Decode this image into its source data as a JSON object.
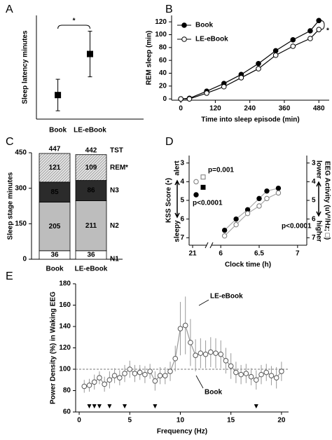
{
  "chart_data": [
    {
      "type": "errorbar",
      "panel": "A",
      "ylabel": "Sleep latency minutes",
      "categories": [
        "Book",
        "LE-eBook"
      ],
      "values": [
        15.8,
        25.7
      ],
      "errors": [
        3.8,
        5.5
      ],
      "color": "#000000",
      "ylim": [
        10,
        35
      ],
      "annotation": "*"
    },
    {
      "type": "line",
      "panel": "B",
      "xlabel": "Time into sleep episode (min)",
      "ylabel": "REM sleep (min)",
      "x": [
        0,
        30,
        90,
        150,
        210,
        270,
        330,
        390,
        450,
        480
      ],
      "series": [
        {
          "name": "Book",
          "color": "#000000",
          "values": [
            0,
            1,
            12,
            24,
            38,
            55,
            75,
            92,
            106,
            122
          ]
        },
        {
          "name": "LE-eBook",
          "color": "#ffffff",
          "values": [
            0,
            0,
            9,
            19,
            33,
            47,
            68,
            82,
            94,
            108
          ]
        }
      ],
      "xlim": [
        -32,
        516
      ],
      "ylim": [
        -2,
        130
      ],
      "xticks": [
        0,
        120,
        240,
        360,
        480
      ],
      "yticks": [
        0,
        20,
        40,
        60,
        80,
        100,
        120
      ],
      "legend": "upper left",
      "annotation": "*"
    },
    {
      "type": "stacked_bar",
      "panel": "C",
      "ylabel": "Sleep stage minutes",
      "categories": [
        "Book",
        "LE-eBook"
      ],
      "series": [
        {
          "name": "N1",
          "color": "#ffffff",
          "values": [
            36,
            36
          ]
        },
        {
          "name": "N2",
          "color": "#bdbdbd",
          "values": [
            205,
            211
          ]
        },
        {
          "name": "N3",
          "color": "#2b2b2b",
          "values": [
            85,
            86
          ]
        },
        {
          "name": "REM",
          "color": "#d9d9d9",
          "pattern": "hatch",
          "values": [
            121,
            109
          ]
        }
      ],
      "totals": {
        "name": "TST",
        "values": [
          447,
          442
        ]
      },
      "annotation": "*",
      "ylim": [
        0,
        450
      ],
      "yticks": [
        0,
        150,
        300,
        450
      ]
    },
    {
      "type": "scatter",
      "panel": "D",
      "xlabel": "Clock time (h)",
      "ylabel": "KSS Score (•)",
      "ylabel_top": "alert",
      "ylabel_bottom": "sleepy",
      "y2label": "EEG Activity (uV²/Hz; □)",
      "y2label_top": "lower",
      "y2label_bottom": "higher",
      "series": [
        {
          "color": "#000000",
          "marker": "circle",
          "x": [
            21.1,
            6.05,
            6.2,
            6.35,
            6.5,
            6.6,
            6.75
          ],
          "values": [
            4.7,
            6.6,
            6.0,
            5.5,
            4.9,
            4.5,
            4.35
          ]
        },
        {
          "color": "#ffffff",
          "edgecolor": "#777777",
          "marker": "circle",
          "x": [
            21.1,
            6.05,
            6.2,
            6.35,
            6.5,
            6.6,
            6.75
          ],
          "values": [
            4.0,
            6.9,
            6.3,
            5.7,
            5.3,
            4.9,
            4.6
          ]
        },
        {
          "color": "#000000",
          "marker": "square",
          "axis": "y2",
          "x": [
            21.3
          ],
          "values": [
            4.3
          ]
        },
        {
          "color": "#ffffff",
          "edgecolor": "#777777",
          "marker": "square",
          "axis": "y2",
          "x": [
            21.3
          ],
          "values": [
            3.75
          ]
        }
      ],
      "annotations": [
        "p=0.001",
        "p<0.0001",
        "p<0.0001"
      ],
      "xlim_before_break": [
        20.9,
        21.4
      ],
      "xticks_before_break": [
        21
      ],
      "xlim": [
        5.88,
        7.12
      ],
      "xticks": [
        6,
        6.5,
        7
      ],
      "ylim": [
        7.4,
        2.6
      ],
      "yticks": [
        3,
        4,
        5,
        6,
        7
      ],
      "y2lim": [
        7.4,
        2.6
      ],
      "y2ticks": [
        3,
        4,
        5,
        6,
        7
      ]
    },
    {
      "type": "line",
      "panel": "E",
      "xlabel": "Frequency (Hz)",
      "ylabel": "Power Density (%) in Waking EEG",
      "x": [
        0.5,
        1,
        1.5,
        2,
        2.5,
        3,
        3.5,
        4,
        4.5,
        5,
        5.5,
        6,
        6.5,
        7,
        7.5,
        8,
        8.5,
        9,
        9.5,
        10,
        10.5,
        11,
        11.5,
        12,
        12.5,
        13,
        13.5,
        14,
        14.5,
        15,
        15.5,
        16,
        16.5,
        17,
        17.5,
        18,
        18.5,
        19,
        19.5,
        20
      ],
      "series": [
        {
          "name": "LE-eBook",
          "color": "#ffffff",
          "linecolor": "#999999",
          "values": [
            84,
            85,
            88,
            92,
            86,
            90,
            94,
            92,
            96,
            100,
            96,
            97,
            95,
            98,
            89,
            94,
            94,
            98,
            110,
            138,
            141,
            125,
            113,
            115,
            114,
            116,
            115,
            114,
            108,
            103,
            97,
            95,
            96,
            93,
            90,
            95,
            97,
            94,
            92,
            98
          ],
          "errors": [
            6,
            6,
            7,
            6,
            7,
            8,
            7,
            7,
            8,
            8,
            8,
            7,
            8,
            7,
            9,
            8,
            8,
            9,
            12,
            25,
            27,
            22,
            15,
            14,
            13,
            14,
            14,
            13,
            12,
            12,
            10,
            9,
            9,
            8,
            9,
            9,
            8,
            9,
            10,
            9
          ]
        }
      ],
      "reference": {
        "name": "Book",
        "value": 100
      },
      "markers_x": [
        1,
        1.5,
        2,
        3,
        4.5,
        7.5,
        17.5
      ],
      "xlim": [
        -0.35,
        20.7
      ],
      "ylim": [
        60,
        180
      ],
      "xticks": [
        0,
        5,
        10,
        15,
        20
      ],
      "yticks": [
        60,
        80,
        100,
        120,
        140,
        160,
        180
      ]
    }
  ]
}
